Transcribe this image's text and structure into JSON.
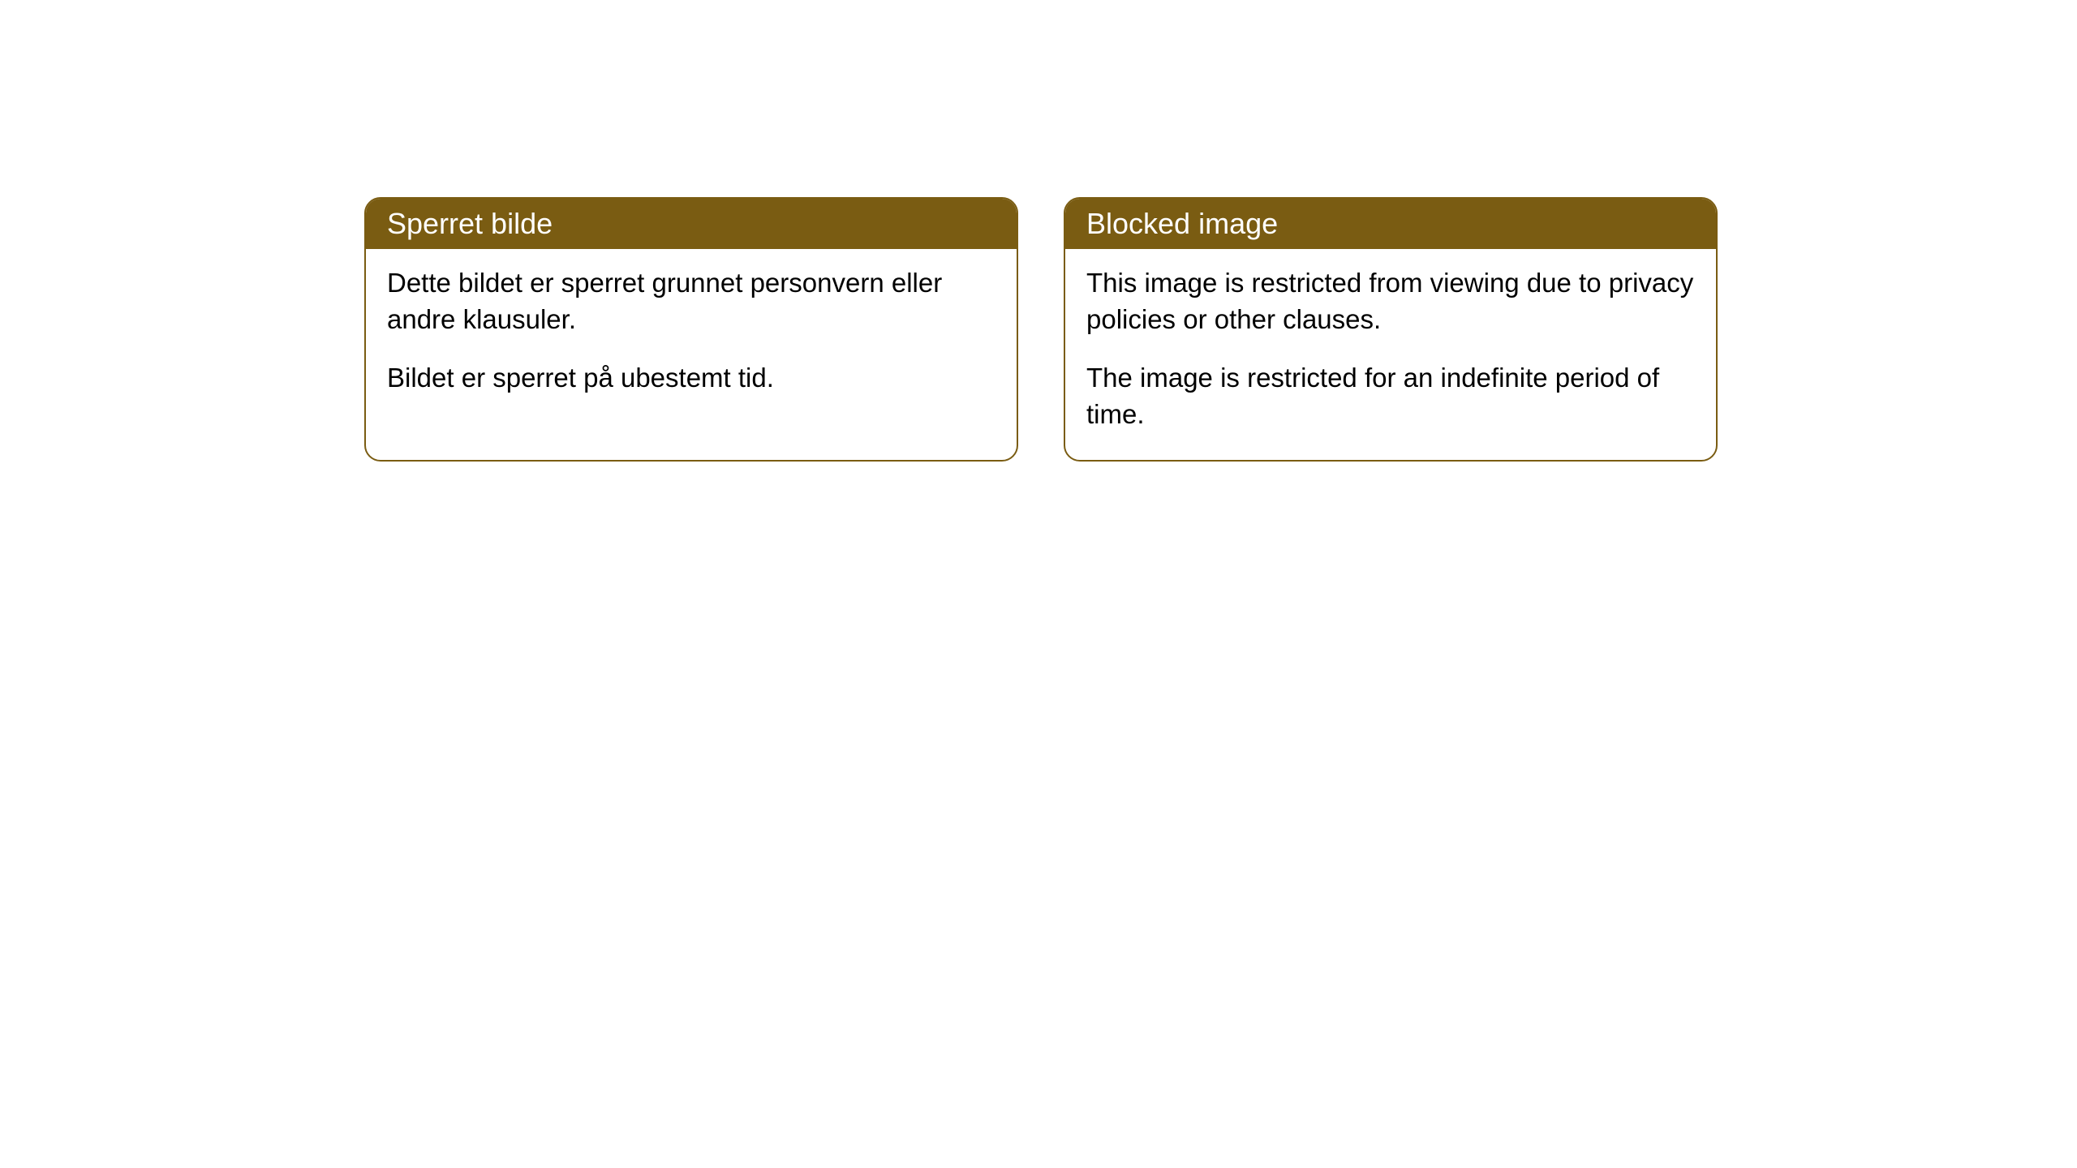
{
  "cards": [
    {
      "title": "Sperret bilde",
      "paragraph1": "Dette bildet er sperret grunnet personvern eller andre klausuler.",
      "paragraph2": "Bildet er sperret på ubestemt tid."
    },
    {
      "title": "Blocked image",
      "paragraph1": "This image is restricted from viewing due to privacy policies or other clauses.",
      "paragraph2": "The image is restricted for an indefinite period of time."
    }
  ],
  "styling": {
    "header_background": "#7a5c12",
    "header_text_color": "#ffffff",
    "card_border_color": "#7a5c12",
    "card_background": "#ffffff",
    "body_text_color": "#000000",
    "border_radius": 20,
    "title_fontsize": 36,
    "body_fontsize": 33
  }
}
